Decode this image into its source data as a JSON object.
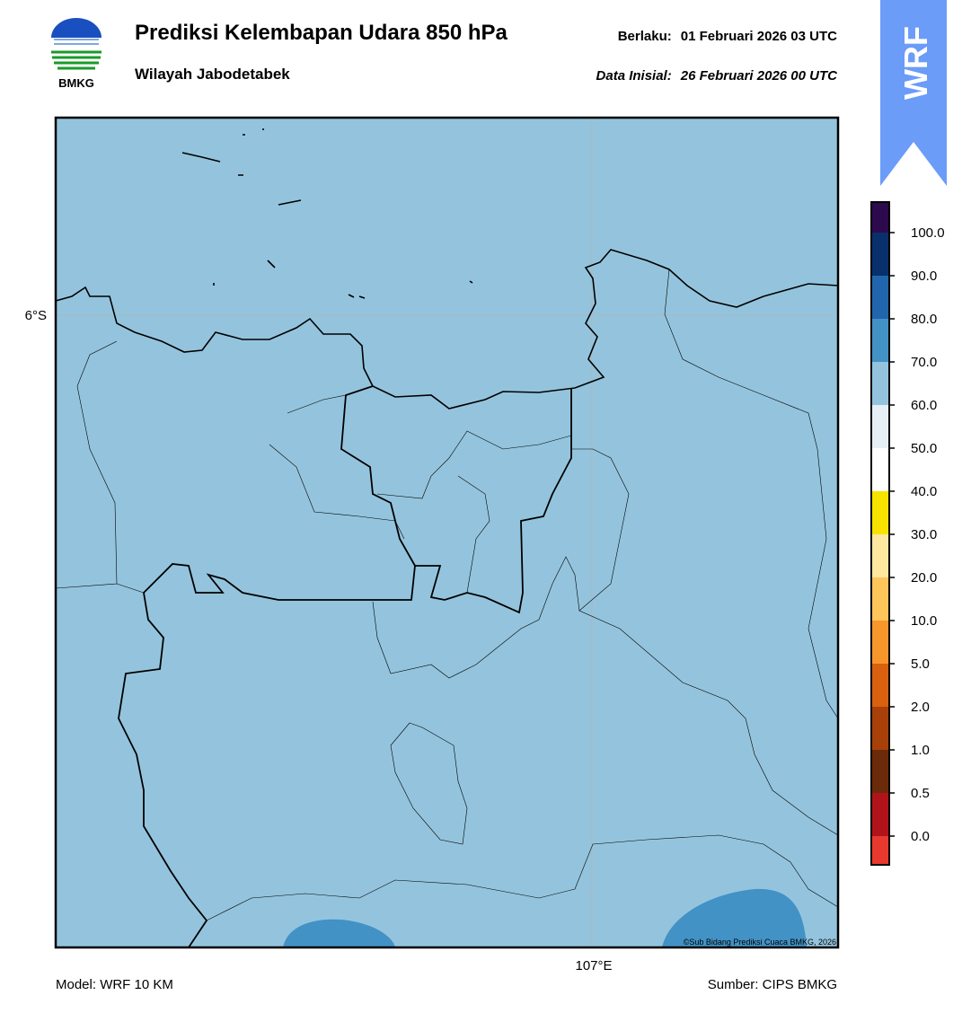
{
  "header": {
    "logo_text": "BMKG",
    "title": "Prediksi Kelembapan Udara 850 hPa",
    "subtitle": "Wilayah Jabodetabek",
    "valid_label": "Berlaku:",
    "valid_time": "01 Februari 2026 03 UTC",
    "init_label": "Data Inisial:",
    "init_time": "26 Februari 2026 00 UTC",
    "badge": "WRF"
  },
  "map": {
    "lat_label": "6°S",
    "lon_label": "107°E",
    "credit": "©Sub Bidang Prediksi Cuaca BMKG, 2026"
  },
  "colorbar": {
    "colors": [
      "#e8392f",
      "#b0141a",
      "#6b2a0a",
      "#a8400a",
      "#d9600e",
      "#f7962a",
      "#fdc55a",
      "#fee8a0",
      "#f7e200",
      "#ffffff",
      "#e6eef6",
      "#94c4dd",
      "#4292c6",
      "#2166ac",
      "#08306b",
      "#2d0a4e"
    ],
    "ticks": [
      {
        "value": 0,
        "label": "0.0"
      },
      {
        "value": 0.5,
        "label": "0.5"
      },
      {
        "value": 1,
        "label": "1.0"
      },
      {
        "value": 2,
        "label": "2.0"
      },
      {
        "value": 5,
        "label": "5.0"
      },
      {
        "value": 10,
        "label": "10.0"
      },
      {
        "value": 20,
        "label": "20.0"
      },
      {
        "value": 30,
        "label": "30.0"
      },
      {
        "value": 40,
        "label": "40.0"
      },
      {
        "value": 50,
        "label": "50.0"
      },
      {
        "value": 60,
        "label": "60.0"
      },
      {
        "value": 70,
        "label": "70.0"
      },
      {
        "value": 80,
        "label": "80.0"
      },
      {
        "value": 90,
        "label": "90.0"
      },
      {
        "value": 100,
        "label": "100.0"
      }
    ]
  },
  "footer": {
    "model": "Model: WRF 10 KM",
    "source": "Sumber: CIPS BMKG"
  }
}
